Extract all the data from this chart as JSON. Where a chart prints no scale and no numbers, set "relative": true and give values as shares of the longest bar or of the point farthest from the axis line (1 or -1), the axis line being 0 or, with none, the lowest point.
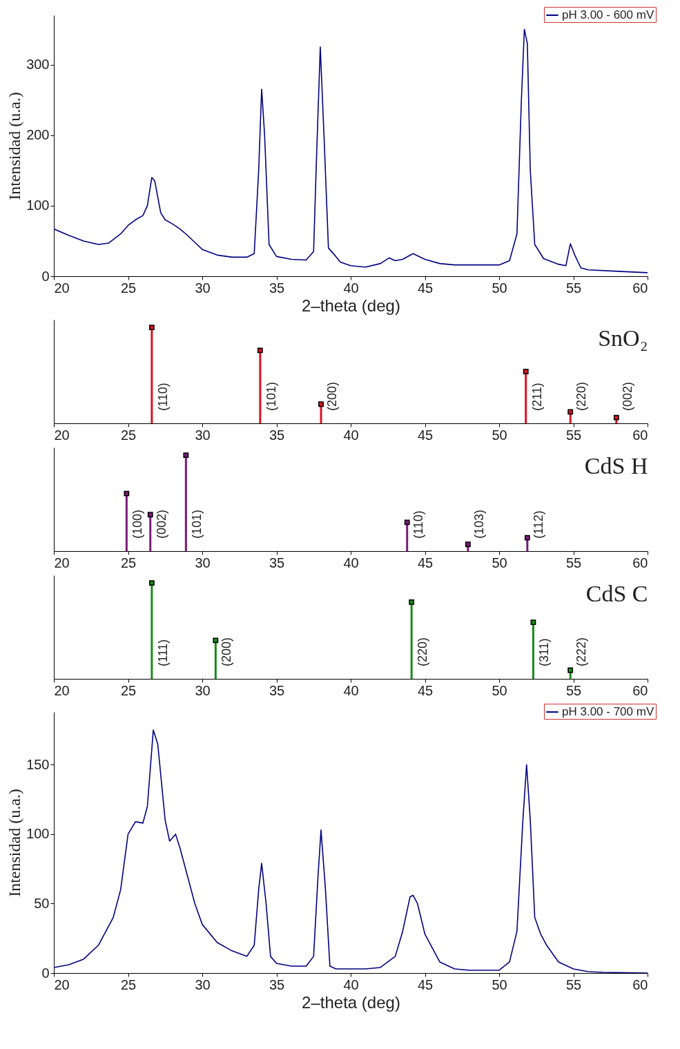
{
  "chart_data": [
    {
      "type": "line",
      "xlabel": "2–theta (deg)",
      "ylabel": "Intensidad (u.a.)",
      "xlim": [
        20,
        60
      ],
      "xticks": [
        20,
        25,
        30,
        35,
        40,
        45,
        50,
        55,
        60
      ],
      "ylim": [
        0,
        370
      ],
      "yticks": [
        0,
        100,
        200,
        300
      ],
      "legend": "top right",
      "series": [
        {
          "name": "pH 3.00 - 600 mV",
          "color": "#000080",
          "x": [
            20,
            21,
            22,
            23,
            23.7,
            24.5,
            25,
            25.5,
            26,
            26.3,
            26.6,
            26.8,
            27.2,
            27.5,
            28,
            28.5,
            29,
            29.5,
            30,
            31,
            32,
            33,
            33.5,
            33.8,
            34,
            34.2,
            34.5,
            35,
            36,
            37,
            37.5,
            37.7,
            37.95,
            38.2,
            38.5,
            39,
            39.3,
            40,
            41,
            42,
            42.6,
            43,
            43.5,
            44.2,
            45,
            46,
            47,
            48,
            49,
            50,
            50.7,
            51.2,
            51.5,
            51.7,
            51.9,
            52.1,
            52.4,
            53,
            54,
            54.5,
            54.8,
            55.1,
            55.5,
            56,
            58,
            60
          ],
          "values": [
            67,
            58,
            50,
            45,
            47,
            60,
            72,
            80,
            86,
            100,
            140,
            135,
            90,
            80,
            74,
            67,
            58,
            48,
            38,
            30,
            27,
            27,
            32,
            150,
            265,
            200,
            45,
            28,
            24,
            23,
            35,
            170,
            325,
            200,
            40,
            28,
            20,
            15,
            13,
            18,
            26,
            22,
            24,
            32,
            24,
            18,
            16,
            16,
            16,
            16,
            22,
            60,
            250,
            350,
            330,
            150,
            45,
            25,
            17,
            15,
            46,
            30,
            12,
            9,
            7,
            5
          ]
        }
      ]
    },
    {
      "type": "lollipop",
      "title": "SnO₂",
      "relative": true,
      "marker": "square",
      "tick_labels": "x",
      "xlim": [
        20,
        60
      ],
      "xticks": [
        20,
        25,
        30,
        35,
        40,
        45,
        50,
        55,
        60
      ],
      "x": [
        26.6,
        33.9,
        38.0,
        51.8,
        54.8,
        57.9
      ],
      "series": [
        {
          "color": "#dd1122",
          "values": [
            1,
            0.76,
            0.2,
            0.54,
            0.12,
            0.06
          ]
        }
      ],
      "annotations": [
        "(110)",
        "(101)",
        "(200)",
        "(211)",
        "(220)",
        "(002)"
      ]
    },
    {
      "type": "lollipop",
      "title": "CdS H",
      "relative": true,
      "marker": "square",
      "tick_labels": "x",
      "xlim": [
        20,
        60
      ],
      "xticks": [
        20,
        25,
        30,
        35,
        40,
        45,
        50,
        55,
        60
      ],
      "x": [
        24.9,
        26.5,
        28.9,
        43.8,
        47.9,
        51.9
      ],
      "series": [
        {
          "color": "#7a1a7a",
          "values": [
            0.6,
            0.38,
            1,
            0.3,
            0.07,
            0.14
          ]
        }
      ],
      "annotations": [
        "(100)",
        "(002)",
        "(101)",
        "(110)",
        "(103)",
        "(112)"
      ]
    },
    {
      "type": "lollipop",
      "title": "CdS C",
      "relative": true,
      "marker": "square",
      "tick_labels": "x",
      "xlim": [
        20,
        60
      ],
      "xticks": [
        20,
        25,
        30,
        35,
        40,
        45,
        50,
        55,
        60
      ],
      "x": [
        26.6,
        30.9,
        44.1,
        52.3,
        54.8
      ],
      "series": [
        {
          "color": "#1a8a1a",
          "values": [
            1,
            0.4,
            0.8,
            0.59,
            0.09
          ]
        }
      ],
      "annotations": [
        "(111)",
        "(200)",
        "(220)",
        "(311)",
        "(222)"
      ]
    },
    {
      "type": "line",
      "xlabel": "2–theta (deg)",
      "ylabel": "Intensidad (u.a.)",
      "xlim": [
        20,
        60
      ],
      "xticks": [
        20,
        25,
        30,
        35,
        40,
        45,
        50,
        55,
        60
      ],
      "ylim": [
        0,
        188
      ],
      "yticks": [
        0,
        50,
        100,
        150
      ],
      "legend": "top right",
      "series": [
        {
          "name": "pH 3.00 - 700 mV",
          "color": "#000080",
          "x": [
            20,
            21,
            22,
            23,
            24,
            24.5,
            25,
            25.5,
            26,
            26.3,
            26.7,
            27,
            27.5,
            27.8,
            28.2,
            28.5,
            29,
            29.5,
            30,
            31,
            32,
            33,
            33.5,
            33.8,
            34,
            34.3,
            34.6,
            35,
            36,
            37,
            37.5,
            37.8,
            38,
            38.3,
            38.6,
            39,
            41,
            42,
            43,
            43.5,
            44,
            44.2,
            44.5,
            45,
            46,
            47,
            48,
            50,
            50.7,
            51.2,
            51.6,
            51.85,
            52.1,
            52.4,
            52.8,
            53.2,
            54,
            55,
            56,
            57,
            60
          ],
          "values": [
            4,
            6,
            10,
            20,
            40,
            60,
            100,
            109,
            108,
            120,
            175,
            165,
            110,
            95,
            100,
            90,
            70,
            50,
            35,
            22,
            16,
            12,
            20,
            60,
            79,
            50,
            12,
            7,
            5,
            5,
            12,
            70,
            103,
            60,
            5,
            3,
            3,
            4,
            12,
            30,
            55,
            56,
            50,
            28,
            8,
            3,
            2,
            2,
            8,
            30,
            110,
            150,
            110,
            40,
            28,
            20,
            8,
            3,
            1,
            0.5,
            0
          ]
        }
      ]
    }
  ]
}
